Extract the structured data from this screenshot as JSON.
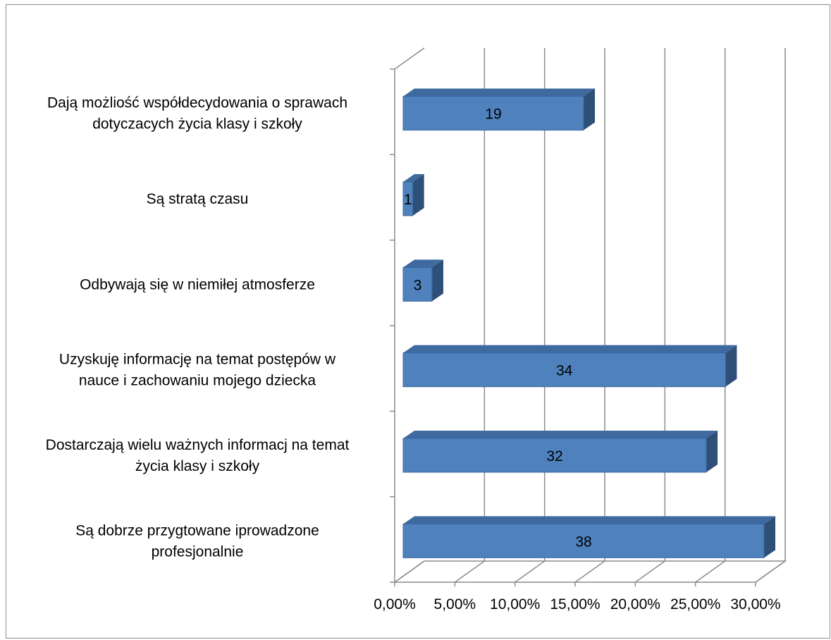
{
  "chart_data": {
    "type": "bar",
    "orientation": "horizontal",
    "style": "3d-clustered-bar",
    "title": "",
    "xlabel": "",
    "ylabel": "",
    "xlim": [
      0,
      0.3
    ],
    "x_tick_labels": [
      "0,00%",
      "5,00%",
      "10,00%",
      "15,00%",
      "20,00%",
      "25,00%",
      "30,00%"
    ],
    "x_ticks": [
      0,
      0.05,
      0.1,
      0.15,
      0.2,
      0.25,
      0.3
    ],
    "grid": true,
    "legend": "none",
    "bar_color": "#4f81bd",
    "bar_side_color": "#2e4f78",
    "bar_top_color": "#3f6aa0",
    "categories": [
      "Dają możliość współdecydowania o sprawach dotyczacych życia klasy i szkoły",
      "Są stratą czasu",
      "Odbywają się w niemiłej atmosferze",
      "Uzyskuję informację na temat postępów w nauce i zachowaniu mojego dziecka",
      "Dostarczają wielu ważnych informacj na temat życia klasy i szkoły",
      "Są dobrze przygtowane iprowadzone profesjonalnie"
    ],
    "category_label_lines": [
      [
        "Dają możliość współdecydowania o sprawach",
        "dotyczacych życia klasy i szkoły"
      ],
      [
        "Są stratą czasu"
      ],
      [
        "Odbywają się w niemiłej atmosferze"
      ],
      [
        "Uzyskuję informację na temat postępów w",
        "nauce i zachowaniu mojego dziecka"
      ],
      [
        "Dostarczają wielu ważnych informacj na temat",
        "życia klasy i szkoły"
      ],
      [
        "Są dobrze przygtowane iprowadzone",
        "profesjonalnie"
      ]
    ],
    "values": [
      0.15,
      0.008,
      0.024,
      0.268,
      0.252,
      0.3
    ],
    "data_labels": [
      "19",
      "1",
      "3",
      "34",
      "32",
      "38"
    ]
  }
}
